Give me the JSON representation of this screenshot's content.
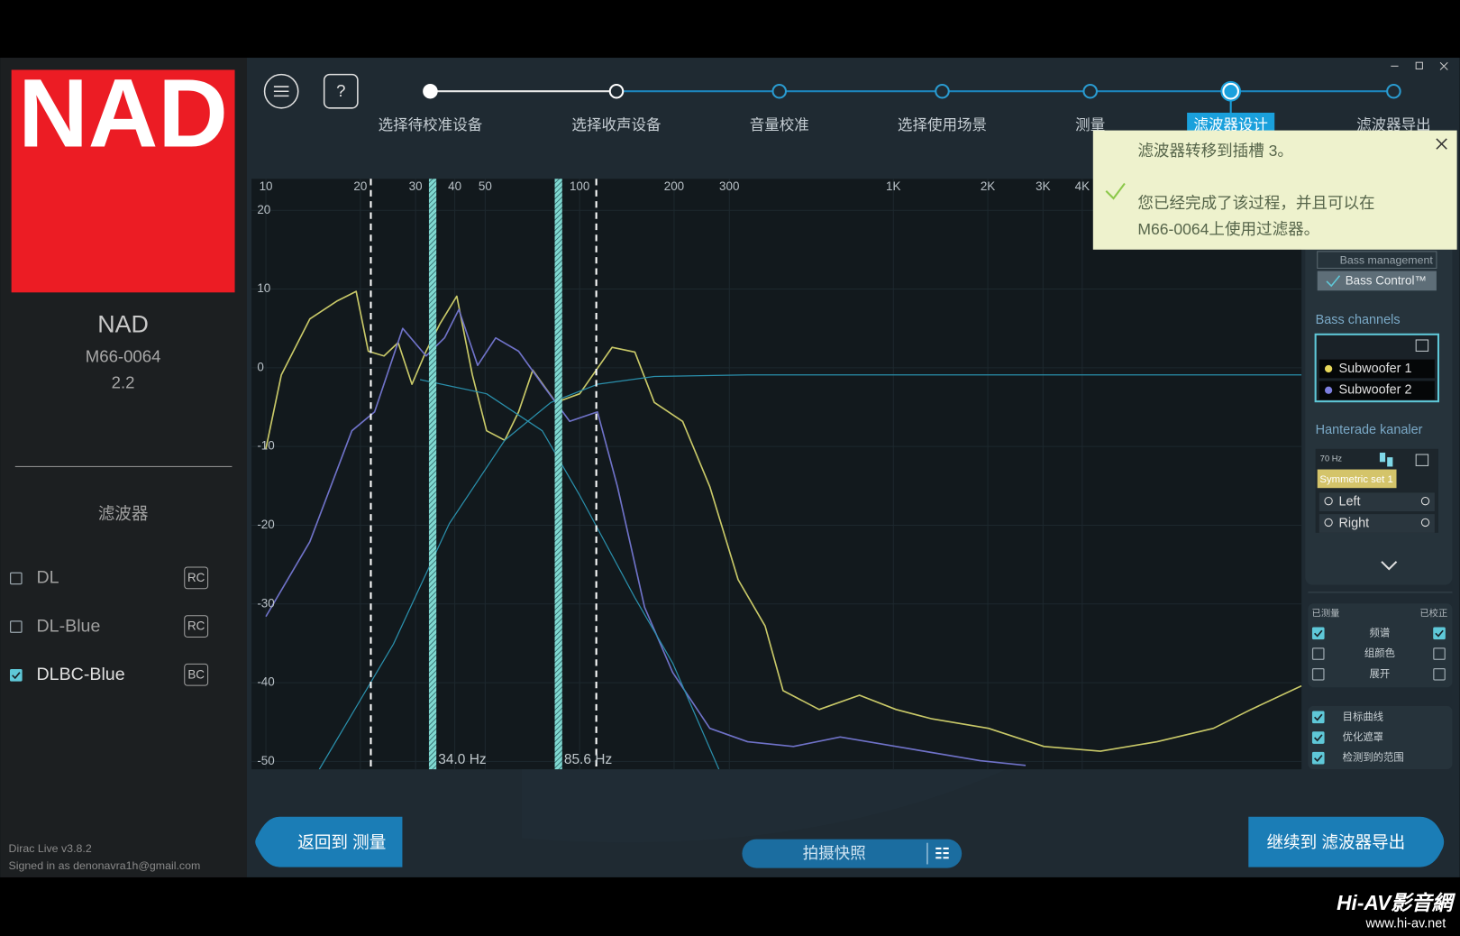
{
  "window": {
    "title": "Dirac Live"
  },
  "sidebar": {
    "logo": "NAD",
    "device_name": "NAD",
    "device_model": "M66-0064",
    "device_version": "2.2",
    "filters_title": "滤波器",
    "filters": [
      {
        "name": "DL",
        "badge": "RC",
        "checked": false
      },
      {
        "name": "DL-Blue",
        "badge": "RC",
        "checked": false
      },
      {
        "name": "DLBC-Blue",
        "badge": "BC",
        "checked": true
      }
    ],
    "version": "Dirac Live v3.8.2",
    "signed_in": "Signed in as denonavra1h@gmail.com"
  },
  "steps": {
    "labels": [
      "选择待校准设备",
      "选择收声设备",
      "音量校准",
      "选择使用场景",
      "测量",
      "滤波器设计",
      "滤波器导出"
    ],
    "completed": 2,
    "active": 5
  },
  "chart_data": {
    "type": "line",
    "x_scale": "log",
    "xlim": [
      9,
      20000
    ],
    "ylim": [
      -51,
      24
    ],
    "grid": true,
    "xticks": [
      10,
      20,
      30,
      40,
      50,
      100,
      200,
      300,
      {
        "value": 1000,
        "label": "1K"
      },
      {
        "value": 2000,
        "label": "2K"
      },
      {
        "value": 3000,
        "label": "3K"
      },
      {
        "value": 4000,
        "label": "4K"
      }
    ],
    "yticks": [
      20,
      10,
      0,
      -10,
      -20,
      -30,
      -40,
      -50
    ],
    "series": [
      {
        "color": "#c9c968",
        "x": [
          10,
          11.2,
          13.8,
          16.9,
          19.4,
          21.2,
          23.8,
          26.4,
          29.2,
          32.4,
          35.9,
          40.6,
          45.5,
          50.5,
          57.7,
          63.9,
          70.9,
          84,
          100,
          127,
          150,
          173,
          213,
          260,
          320,
          390,
          445,
          580,
          780,
          1020,
          1330,
          2010,
          3020,
          4570,
          6920,
          10480,
          13800,
          20000
        ],
        "values": [
          -10.3,
          -0.9,
          6.2,
          8.5,
          9.7,
          2.1,
          1.5,
          3.2,
          -2.1,
          2.1,
          5.6,
          9.1,
          -0.9,
          -8,
          -9.2,
          -5.6,
          -0.3,
          -4.4,
          -3.3,
          2.6,
          2,
          -4.4,
          -6.8,
          -15.1,
          -26.9,
          -32.8,
          -41,
          -43.4,
          -41.6,
          -43.4,
          -44.6,
          -45.8,
          -48.1,
          -48.7,
          -47.5,
          -45.8,
          -43.4,
          -40.4
        ]
      },
      {
        "color": "#6f72c8",
        "x": [
          10,
          13.8,
          18.8,
          22.2,
          27.3,
          32.4,
          37.1,
          41.2,
          47.3,
          54,
          63.9,
          76,
          93,
          114,
          132,
          161,
          198,
          260,
          343,
          480,
          677,
          1020,
          1890,
          2640
        ],
        "values": [
          -31.6,
          -22.1,
          -8,
          -5.6,
          5,
          1.5,
          3.8,
          7.4,
          0.3,
          3.8,
          2.1,
          -2.1,
          -6.8,
          -5.6,
          -15.1,
          -30.4,
          -38.7,
          -45.8,
          -47.5,
          -48.1,
          -46.9,
          -48.1,
          -49.9,
          -50.5
        ]
      },
      {
        "color": "#2a8fab",
        "x": [
          31,
          50.5,
          76,
          100,
          150,
          198,
          278
        ],
        "values": [
          -1.5,
          -3.3,
          -8,
          -16.2,
          -29.2,
          -37.5,
          -51
        ]
      },
      {
        "color": "#2a8fab",
        "x": [
          14.8,
          25.5,
          38.4,
          57.7,
          81,
          114,
          173,
          343,
          20000
        ],
        "values": [
          -51,
          -35.1,
          -19.8,
          -9.2,
          -4.4,
          -2.1,
          -1.1,
          -0.9,
          -0.9
        ]
      }
    ],
    "cutoffs": [
      {
        "value": 34.0,
        "label": "34.0 Hz"
      },
      {
        "value": 85.6,
        "label": "85.6 Hz"
      }
    ],
    "range_lines": [
      21.6,
      113
    ]
  },
  "notification": {
    "title": "滤波器转移到插槽 3。",
    "message": [
      "您已经完成了该过程，并且可以在",
      "M66-0064上使用过滤器。"
    ]
  },
  "right_panel": {
    "bass_management": "Bass management",
    "bass_control": "Bass Control™",
    "bass_channels_title": "Bass channels",
    "bass_channels": [
      {
        "name": "Subwoofer 1",
        "color": "#e8d85a"
      },
      {
        "name": "Subwoofer 2",
        "color": "#7d7fe0"
      }
    ],
    "grouped_title": "Hanterade kanaler",
    "crossover": "70 Hz",
    "group_name": "Symmetric set 1",
    "grouped_channels": [
      "Left",
      "Right"
    ],
    "measured_label": "已测量",
    "corrected_label": "已校正",
    "view_options": [
      {
        "label": "频谱",
        "measured": true,
        "corrected": true
      },
      {
        "label": "组颜色",
        "measured": false,
        "corrected": false
      },
      {
        "label": "展开",
        "measured": false,
        "corrected": false
      }
    ],
    "overlays": [
      {
        "label": "目标曲线",
        "checked": true
      },
      {
        "label": "优化遮罩",
        "checked": true
      },
      {
        "label": "检测到的范围",
        "checked": true
      }
    ]
  },
  "buttons": {
    "back": "返回到 测量",
    "snapshot": "拍摄快照",
    "next": "继续到 滤波器导出"
  },
  "watermark": {
    "brand": "Hi-AV影音網",
    "url": "www.hi-av.net"
  }
}
